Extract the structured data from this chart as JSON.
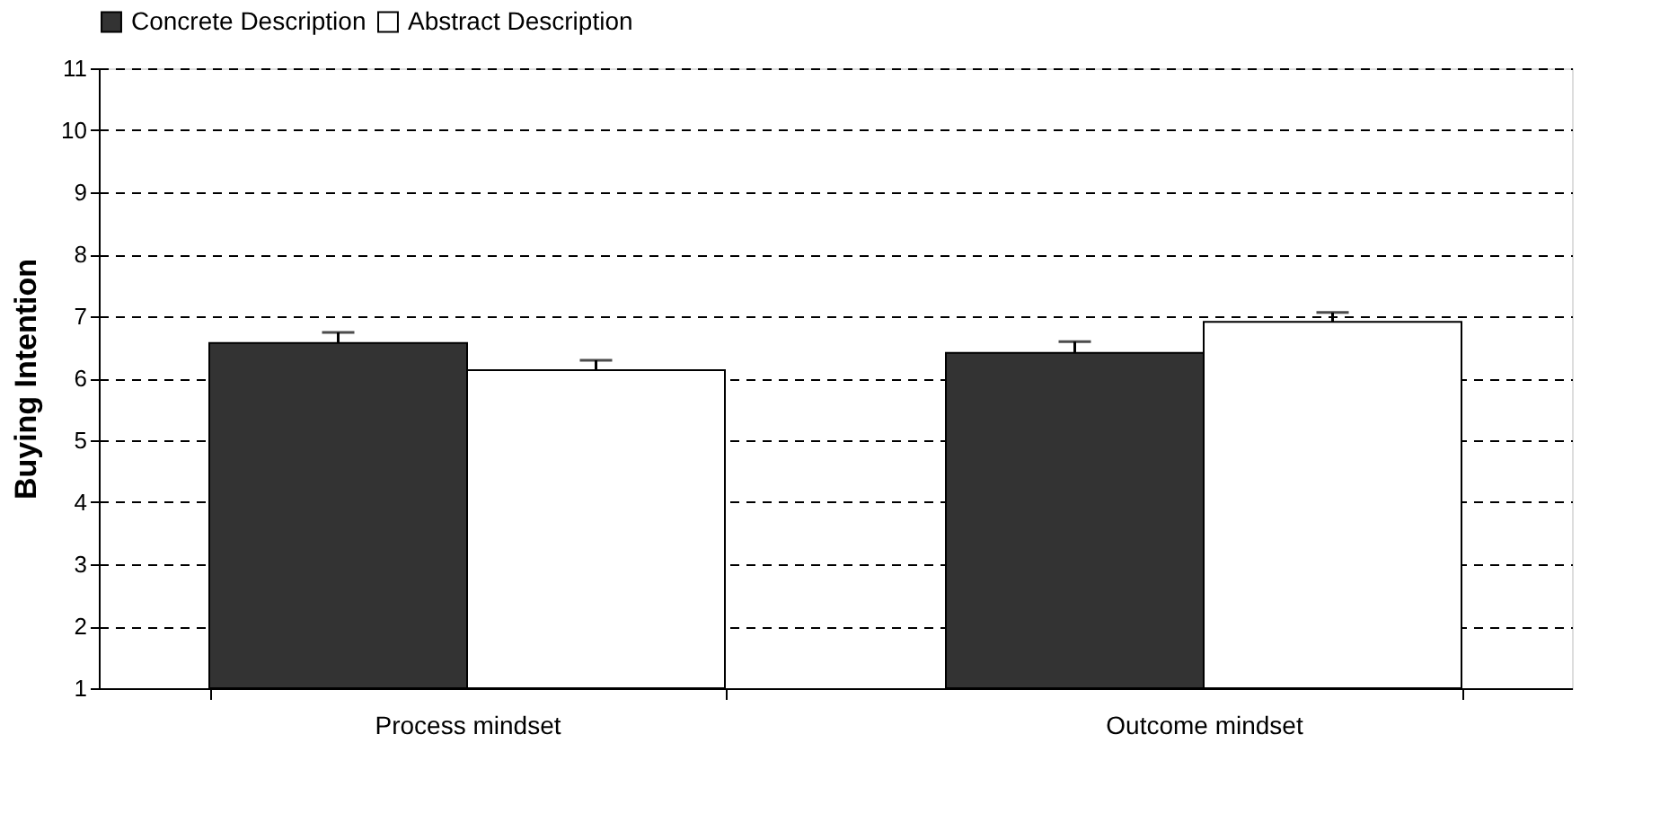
{
  "chart_data": {
    "type": "bar",
    "ylabel": "Buying Intention",
    "categories": [
      "Process mindset",
      "Outcome mindset"
    ],
    "series": [
      {
        "name": "Concrete Description",
        "color": "#333333",
        "values": [
          6.57,
          6.41
        ],
        "errors": [
          [
            6.57,
            6.74
          ],
          [
            6.41,
            6.59
          ]
        ]
      },
      {
        "name": "Abstract Description",
        "color": "#ffffff",
        "values": [
          6.13,
          6.91
        ],
        "errors": [
          [
            6.13,
            6.29
          ],
          [
            6.91,
            7.06
          ]
        ]
      }
    ],
    "ylim": [
      1,
      11
    ],
    "yticks": [
      1,
      2,
      3,
      4,
      5,
      6,
      7,
      8,
      9,
      10,
      11
    ],
    "grid": "y",
    "legend": "top"
  }
}
